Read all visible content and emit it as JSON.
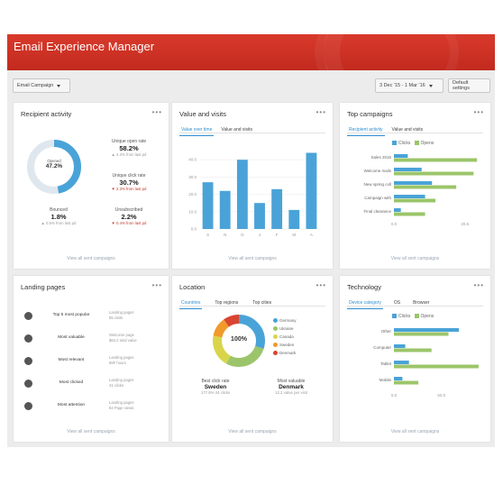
{
  "app": {
    "title": "Email Experience Manager"
  },
  "toolbar": {
    "campaign_select": "Email Campaign",
    "date_range": "3 Dec '15 - 1 Mar '16",
    "default_settings": "Default settings"
  },
  "colors": {
    "accent": "#2e8fd0",
    "bar": "#4aa3d8",
    "green": "#9bc56a",
    "header": "#c8291d"
  },
  "recipient_activity": {
    "title": "Recipient activity",
    "menu": "•••",
    "donut_label": "Opened",
    "donut_value": "47.2%",
    "donut_fraction": 0.472,
    "stats": [
      {
        "label": "Unique open rate",
        "value": "58.2%",
        "change": "4.2% from last pd",
        "trend": "up"
      },
      {
        "label": "Unique click rate",
        "value": "30.7%",
        "change": "2.3% from last pd",
        "trend": "down"
      },
      {
        "label": "Bounced",
        "value": "1.8%",
        "change": "0.5% from last pd",
        "trend": "up"
      },
      {
        "label": "Unsubscribed",
        "value": "2.2%",
        "change": "0.4% from last pd",
        "trend": "down"
      }
    ],
    "footer": "View all sent campaigns"
  },
  "value_visits": {
    "title": "Value and visits",
    "menu": "•••",
    "tabs": [
      "Value over time",
      "Value and visits"
    ],
    "active_tab": 0,
    "footer": "View all sent campaigns"
  },
  "top_campaigns": {
    "title": "Top campaigns",
    "menu": "•••",
    "tabs": [
      "Recipient activity",
      "Value and visits"
    ],
    "active_tab": 0,
    "legend": [
      "Clicks",
      "Opens"
    ],
    "footer": "View all sent campaigns"
  },
  "landing_pages": {
    "title": "Landing pages",
    "menu": "•••",
    "rows": [
      {
        "name": "Top 5 most popular",
        "meta1": "Landing pages",
        "meta2": "85 visits"
      },
      {
        "name": "Most valuable",
        "meta1": "Welcome page",
        "meta2": "$63.2 total value"
      },
      {
        "name": "Most relevant",
        "meta1": "Landing pages",
        "meta2": "88F hours"
      },
      {
        "name": "Most clicked",
        "meta1": "Landing pages",
        "meta2": "41 clicks"
      },
      {
        "name": "Most attention",
        "meta1": "Landing pages",
        "meta2": "84 Page views"
      }
    ],
    "footer": "View all sent campaigns"
  },
  "location": {
    "title": "Location",
    "menu": "•••",
    "tabs": [
      "Countries",
      "Top regions",
      "Top cities"
    ],
    "active_tab": 0,
    "center_value": "100%",
    "legend": [
      {
        "name": "Germany",
        "color": "#4aa3d8"
      },
      {
        "name": "Ukraine",
        "color": "#9bc56a"
      },
      {
        "name": "Canada",
        "color": "#d9d54a"
      },
      {
        "name": "Sweden",
        "color": "#f09a2c"
      },
      {
        "name": "Denmark",
        "color": "#d9452f"
      }
    ],
    "slices": [
      0.3,
      0.28,
      0.2,
      0.12,
      0.1
    ],
    "best_click": {
      "label": "Best click rate",
      "value": "Sweden",
      "sub": "177.8%  44 clicks"
    },
    "most_valuable": {
      "label": "Most valuable",
      "value": "Denmark",
      "sub": "12.2 value per visit"
    },
    "footer": "View all sent campaigns"
  },
  "technology": {
    "title": "Technology",
    "menu": "•••",
    "tabs": [
      "Device category",
      "OS",
      "Browser"
    ],
    "active_tab": 0,
    "legend": [
      "Clicks",
      "Opens"
    ],
    "footer": "View all sent campaigns"
  },
  "chart_data": [
    {
      "type": "bar",
      "categories": [
        "S",
        "N",
        "D",
        "J",
        "F",
        "M",
        "A"
      ],
      "values": [
        27,
        22,
        40,
        15,
        23,
        11,
        44
      ],
      "ylim": [
        0,
        50
      ],
      "yticks": [
        "0.0",
        "10.0",
        "20.0",
        "30.0",
        "40.0"
      ]
    },
    {
      "type": "bar",
      "orientation": "horizontal",
      "categories": [
        "Sales 2016",
        "Welcome mails",
        "New spring coll",
        "Campaign with",
        "Final clearance"
      ],
      "series": [
        {
          "name": "Clicks",
          "values": [
            4,
            8,
            11,
            9,
            2
          ]
        },
        {
          "name": "Opens",
          "values": [
            24,
            23,
            18,
            12,
            9
          ]
        }
      ],
      "xticks": [
        "0.0",
        "20.5"
      ]
    },
    {
      "type": "bar",
      "orientation": "horizontal",
      "categories": [
        "Other",
        "Computer",
        "Tablet",
        "Mobile"
      ],
      "series": [
        {
          "name": "Clicks",
          "values": [
            69,
            12,
            16,
            9
          ]
        },
        {
          "name": "Opens",
          "values": [
            58,
            40,
            90,
            26
          ]
        }
      ],
      "xticks": [
        "0.0",
        "50.0"
      ]
    }
  ]
}
